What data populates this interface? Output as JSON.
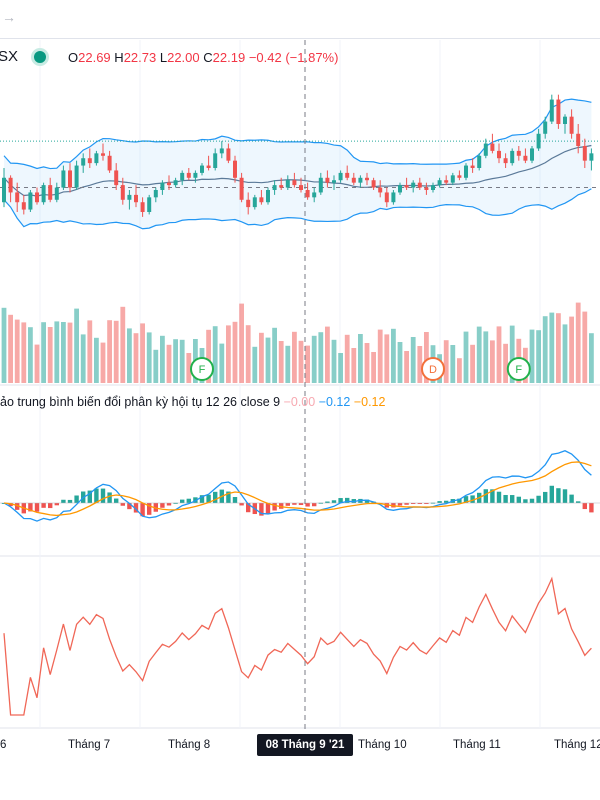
{
  "toolbar": {
    "back_icon": "arrow-right-icon"
  },
  "legend": {
    "symbol": "SX",
    "status_color": "#089981",
    "ohlc": {
      "o_label": "O",
      "o": "22.69",
      "h_label": "H",
      "h": "22.73",
      "l_label": "L",
      "l": "22.00",
      "c_label": "C",
      "c": "22.19",
      "change": "−0.42 (−1.87%)"
    }
  },
  "macd_legend": {
    "title": "ảo trung bình biến đổi phân kỳ hội tụ 12 26 close 9",
    "hist": "−0.00",
    "macd": "−0.12",
    "signal": "−0.12"
  },
  "crosshair_label": "08 Tháng 9 '21",
  "colors": {
    "up": "#26a69a",
    "down": "#ef5350",
    "band": "#2196f3",
    "macd": "#2196f3",
    "signal": "#ff9800",
    "rsi": "#f06757"
  },
  "chart_data": {
    "type": "candlestick",
    "x_axis_labels": [
      "6",
      "Tháng 7",
      "Tháng 8",
      "Tháng 10",
      "Tháng 11",
      "Tháng 12"
    ],
    "price_pane": {
      "ylim": [
        17.0,
        26.0
      ],
      "price_line": 23.5,
      "ref_line": 21.6,
      "candles": [
        [
          21.0,
          22.4,
          20.8,
          22.0
        ],
        [
          22.0,
          22.1,
          21.0,
          21.4
        ],
        [
          21.4,
          21.8,
          20.6,
          21.0
        ],
        [
          21.0,
          21.3,
          20.5,
          20.7
        ],
        [
          20.7,
          21.5,
          20.6,
          21.4
        ],
        [
          21.4,
          21.6,
          20.9,
          21.0
        ],
        [
          21.0,
          21.8,
          20.9,
          21.7
        ],
        [
          21.7,
          22.0,
          21.0,
          21.1
        ],
        [
          21.1,
          21.8,
          21.0,
          21.6
        ],
        [
          21.6,
          22.5,
          21.5,
          22.3
        ],
        [
          22.3,
          22.6,
          21.4,
          21.6
        ],
        [
          21.6,
          22.7,
          21.5,
          22.5
        ],
        [
          22.5,
          23.0,
          22.2,
          22.8
        ],
        [
          22.8,
          23.2,
          22.4,
          22.6
        ],
        [
          22.6,
          23.1,
          22.5,
          23.0
        ],
        [
          23.0,
          23.4,
          22.7,
          22.9
        ],
        [
          22.9,
          23.1,
          22.2,
          22.3
        ],
        [
          22.3,
          22.6,
          21.5,
          21.7
        ],
        [
          21.7,
          22.0,
          20.9,
          21.1
        ],
        [
          21.1,
          21.5,
          20.7,
          21.3
        ],
        [
          21.3,
          21.7,
          20.8,
          21.0
        ],
        [
          21.0,
          21.2,
          20.4,
          20.6
        ],
        [
          20.6,
          21.3,
          20.5,
          21.2
        ],
        [
          21.2,
          21.6,
          21.0,
          21.5
        ],
        [
          21.5,
          21.9,
          21.3,
          21.8
        ],
        [
          21.8,
          22.1,
          21.5,
          21.7
        ],
        [
          21.7,
          22.0,
          21.6,
          21.9
        ],
        [
          21.9,
          22.3,
          21.7,
          22.2
        ],
        [
          22.2,
          22.4,
          21.9,
          22.0
        ],
        [
          22.0,
          22.3,
          21.8,
          22.2
        ],
        [
          22.2,
          22.6,
          22.1,
          22.5
        ],
        [
          22.5,
          22.9,
          22.3,
          22.4
        ],
        [
          22.4,
          23.2,
          22.3,
          23.0
        ],
        [
          23.0,
          23.5,
          22.8,
          23.2
        ],
        [
          23.2,
          23.4,
          22.6,
          22.7
        ],
        [
          22.7,
          22.9,
          21.8,
          22.0
        ],
        [
          22.0,
          22.2,
          21.0,
          21.1
        ],
        [
          21.1,
          21.4,
          20.5,
          20.8
        ],
        [
          20.8,
          21.3,
          20.7,
          21.2
        ],
        [
          21.2,
          21.5,
          20.9,
          21.0
        ],
        [
          21.0,
          21.6,
          20.9,
          21.5
        ],
        [
          21.5,
          21.9,
          21.3,
          21.7
        ],
        [
          21.7,
          22.0,
          21.5,
          21.6
        ],
        [
          21.6,
          22.1,
          21.5,
          21.9
        ],
        [
          21.9,
          22.2,
          21.6,
          21.7
        ],
        [
          21.7,
          22.0,
          21.4,
          21.5
        ],
        [
          21.5,
          21.8,
          21.1,
          21.2
        ],
        [
          21.2,
          21.6,
          21.0,
          21.4
        ],
        [
          21.4,
          22.2,
          21.3,
          22.0
        ],
        [
          22.0,
          22.3,
          21.6,
          21.8
        ],
        [
          21.8,
          22.1,
          21.5,
          21.9
        ],
        [
          21.9,
          22.3,
          21.8,
          22.2
        ],
        [
          22.2,
          22.5,
          21.9,
          22.0
        ],
        [
          22.0,
          22.2,
          21.7,
          21.8
        ],
        [
          21.8,
          22.1,
          21.6,
          22.0
        ],
        [
          22.0,
          22.2,
          21.7,
          21.9
        ],
        [
          21.9,
          22.0,
          21.5,
          21.6
        ],
        [
          21.6,
          21.9,
          21.2,
          21.4
        ],
        [
          21.4,
          21.6,
          20.8,
          21.0
        ],
        [
          21.0,
          21.5,
          20.9,
          21.4
        ],
        [
          21.4,
          21.8,
          21.3,
          21.7
        ],
        [
          21.7,
          22.0,
          21.5,
          21.6
        ],
        [
          21.6,
          21.9,
          21.4,
          21.8
        ],
        [
          21.8,
          22.0,
          21.5,
          21.6
        ],
        [
          21.6,
          21.8,
          21.3,
          21.5
        ],
        [
          21.5,
          21.8,
          21.4,
          21.7
        ],
        [
          21.7,
          22.0,
          21.6,
          21.9
        ],
        [
          21.9,
          22.1,
          21.7,
          21.8
        ],
        [
          21.8,
          22.2,
          21.7,
          22.1
        ],
        [
          22.1,
          22.3,
          21.9,
          22.0
        ],
        [
          22.0,
          22.6,
          21.9,
          22.5
        ],
        [
          22.5,
          22.8,
          22.2,
          22.4
        ],
        [
          22.4,
          23.0,
          22.3,
          22.9
        ],
        [
          22.9,
          23.6,
          22.8,
          23.4
        ],
        [
          23.4,
          23.8,
          23.0,
          23.1
        ],
        [
          23.1,
          23.4,
          22.6,
          22.8
        ],
        [
          22.8,
          23.0,
          22.4,
          22.6
        ],
        [
          22.6,
          23.2,
          22.5,
          23.1
        ],
        [
          23.1,
          23.3,
          22.7,
          22.9
        ],
        [
          22.9,
          23.2,
          22.6,
          22.7
        ],
        [
          22.7,
          23.3,
          22.6,
          23.2
        ],
        [
          23.2,
          24.0,
          23.1,
          23.8
        ],
        [
          23.8,
          24.5,
          23.6,
          24.3
        ],
        [
          24.3,
          25.4,
          24.2,
          25.2
        ],
        [
          25.2,
          25.4,
          24.0,
          24.2
        ],
        [
          24.2,
          24.6,
          23.8,
          24.5
        ],
        [
          24.5,
          24.8,
          23.6,
          23.8
        ],
        [
          23.8,
          24.2,
          23.0,
          23.3
        ],
        [
          23.3,
          23.6,
          22.4,
          22.7
        ],
        [
          22.7,
          23.2,
          22.3,
          23.0
        ]
      ]
    },
    "volume_pane": {
      "ylim": [
        0,
        100
      ],
      "markers": [
        {
          "label": "F",
          "color": "#22b14c",
          "index": 30
        },
        {
          "label": "F",
          "color": "#22b14c",
          "index": 78
        }
      ],
      "dividend_marker": {
        "label": "D",
        "color": "#f3703a",
        "index": 65
      }
    },
    "macd_pane": {
      "ylim": [
        -0.9,
        1.0
      ]
    },
    "rsi_pane": {
      "ylim": [
        25,
        80
      ]
    }
  }
}
